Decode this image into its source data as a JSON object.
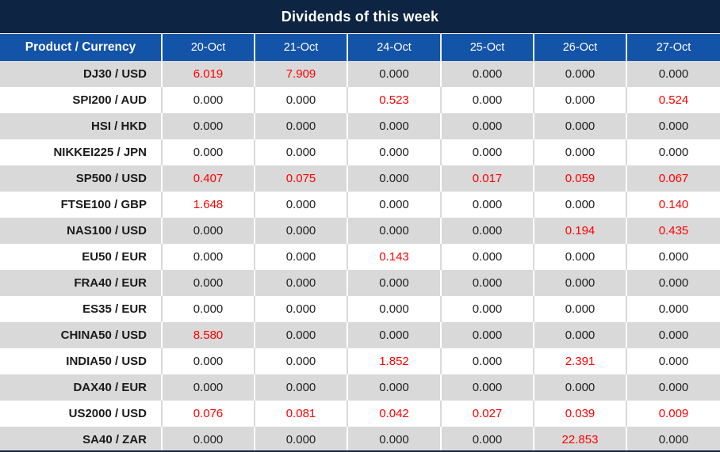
{
  "title": "Dividends of this week",
  "columns": [
    "Product / Currency",
    "20-Oct",
    "21-Oct",
    "24-Oct",
    "25-Oct",
    "26-Oct",
    "27-Oct"
  ],
  "colors": {
    "title_bar_bg": "#0d2442",
    "header_bg": "#1353a8",
    "row_stripe": "#d9d9d9",
    "row_plain": "#ffffff",
    "value_text": "#212121",
    "highlight_red": "#ff0000"
  },
  "rows": [
    {
      "product": "DJ30 / USD",
      "values": [
        "6.019",
        "7.909",
        "0.000",
        "0.000",
        "0.000",
        "0.000"
      ],
      "red": [
        true,
        true,
        false,
        false,
        false,
        false
      ]
    },
    {
      "product": "SPI200 / AUD",
      "values": [
        "0.000",
        "0.000",
        "0.523",
        "0.000",
        "0.000",
        "0.524"
      ],
      "red": [
        false,
        false,
        true,
        false,
        false,
        true
      ]
    },
    {
      "product": "HSI / HKD",
      "values": [
        "0.000",
        "0.000",
        "0.000",
        "0.000",
        "0.000",
        "0.000"
      ],
      "red": [
        false,
        false,
        false,
        false,
        false,
        false
      ]
    },
    {
      "product": "NIKKEI225 / JPN",
      "values": [
        "0.000",
        "0.000",
        "0.000",
        "0.000",
        "0.000",
        "0.000"
      ],
      "red": [
        false,
        false,
        false,
        false,
        false,
        false
      ]
    },
    {
      "product": "SP500 / USD",
      "values": [
        "0.407",
        "0.075",
        "0.000",
        "0.017",
        "0.059",
        "0.067"
      ],
      "red": [
        true,
        true,
        false,
        true,
        true,
        true
      ]
    },
    {
      "product": "FTSE100 / GBP",
      "values": [
        "1.648",
        "0.000",
        "0.000",
        "0.000",
        "0.000",
        "0.140"
      ],
      "red": [
        true,
        false,
        false,
        false,
        false,
        true
      ]
    },
    {
      "product": "NAS100 / USD",
      "values": [
        "0.000",
        "0.000",
        "0.000",
        "0.000",
        "0.194",
        "0.435"
      ],
      "red": [
        false,
        false,
        false,
        false,
        true,
        true
      ]
    },
    {
      "product": "EU50 / EUR",
      "values": [
        "0.000",
        "0.000",
        "0.143",
        "0.000",
        "0.000",
        "0.000"
      ],
      "red": [
        false,
        false,
        true,
        false,
        false,
        false
      ]
    },
    {
      "product": "FRA40 / EUR",
      "values": [
        "0.000",
        "0.000",
        "0.000",
        "0.000",
        "0.000",
        "0.000"
      ],
      "red": [
        false,
        false,
        false,
        false,
        false,
        false
      ]
    },
    {
      "product": "ES35 / EUR",
      "values": [
        "0.000",
        "0.000",
        "0.000",
        "0.000",
        "0.000",
        "0.000"
      ],
      "red": [
        false,
        false,
        false,
        false,
        false,
        false
      ]
    },
    {
      "product": "CHINA50 / USD",
      "values": [
        "8.580",
        "0.000",
        "0.000",
        "0.000",
        "0.000",
        "0.000"
      ],
      "red": [
        true,
        false,
        false,
        false,
        false,
        false
      ]
    },
    {
      "product": "INDIA50 / USD",
      "values": [
        "0.000",
        "0.000",
        "1.852",
        "0.000",
        "2.391",
        "0.000"
      ],
      "red": [
        false,
        false,
        true,
        false,
        true,
        false
      ]
    },
    {
      "product": "DAX40 / EUR",
      "values": [
        "0.000",
        "0.000",
        "0.000",
        "0.000",
        "0.000",
        "0.000"
      ],
      "red": [
        false,
        false,
        false,
        false,
        false,
        false
      ]
    },
    {
      "product": "US2000 / USD",
      "values": [
        "0.076",
        "0.081",
        "0.042",
        "0.027",
        "0.039",
        "0.009"
      ],
      "red": [
        true,
        true,
        true,
        true,
        true,
        true
      ]
    },
    {
      "product": "SA40 / ZAR",
      "values": [
        "0.000",
        "0.000",
        "0.000",
        "0.000",
        "22.853",
        "0.000"
      ],
      "red": [
        false,
        false,
        false,
        false,
        true,
        false
      ]
    }
  ]
}
